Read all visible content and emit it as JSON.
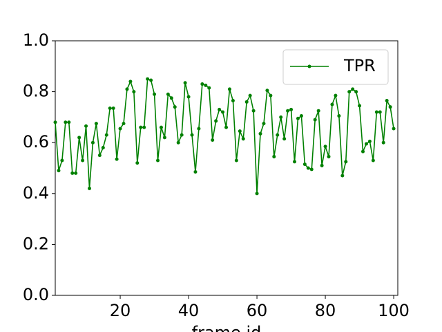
{
  "chart_data": {
    "type": "line",
    "xlabel": "frame id",
    "x": [
      1,
      2,
      3,
      4,
      5,
      6,
      7,
      8,
      9,
      10,
      11,
      12,
      13,
      14,
      15,
      16,
      17,
      18,
      19,
      20,
      21,
      22,
      23,
      24,
      25,
      26,
      27,
      28,
      29,
      30,
      31,
      32,
      33,
      34,
      35,
      36,
      37,
      38,
      39,
      40,
      41,
      42,
      43,
      44,
      45,
      46,
      47,
      48,
      49,
      50,
      51,
      52,
      53,
      54,
      55,
      56,
      57,
      58,
      59,
      60,
      61,
      62,
      63,
      64,
      65,
      66,
      67,
      68,
      69,
      70,
      71,
      72,
      73,
      74,
      75,
      76,
      77,
      78,
      79,
      80,
      81,
      82,
      83,
      84,
      85,
      86,
      87,
      88,
      89,
      90,
      91,
      92,
      93,
      94,
      95,
      96,
      97,
      98,
      99,
      100
    ],
    "series": [
      {
        "name": "TPR",
        "color": "#008000",
        "values": [
          0.68,
          0.49,
          0.53,
          0.68,
          0.68,
          0.48,
          0.48,
          0.62,
          0.53,
          0.665,
          0.42,
          0.6,
          0.675,
          0.55,
          0.58,
          0.63,
          0.735,
          0.735,
          0.535,
          0.655,
          0.675,
          0.81,
          0.84,
          0.8,
          0.52,
          0.66,
          0.66,
          0.85,
          0.845,
          0.79,
          0.53,
          0.66,
          0.62,
          0.79,
          0.775,
          0.74,
          0.6,
          0.63,
          0.835,
          0.78,
          0.63,
          0.485,
          0.655,
          0.83,
          0.825,
          0.815,
          0.61,
          0.685,
          0.73,
          0.72,
          0.66,
          0.81,
          0.765,
          0.53,
          0.645,
          0.615,
          0.76,
          0.785,
          0.725,
          0.4,
          0.635,
          0.675,
          0.805,
          0.785,
          0.545,
          0.63,
          0.7,
          0.615,
          0.725,
          0.73,
          0.525,
          0.695,
          0.705,
          0.515,
          0.5,
          0.495,
          0.69,
          0.725,
          0.51,
          0.585,
          0.545,
          0.75,
          0.785,
          0.705,
          0.47,
          0.525,
          0.8,
          0.81,
          0.8,
          0.745,
          0.565,
          0.595,
          0.605,
          0.53,
          0.72,
          0.72,
          0.6,
          0.765,
          0.74,
          0.655
        ]
      }
    ],
    "xlim": [
      1,
      101.2
    ],
    "xticks": [
      20,
      40,
      60,
      80,
      100
    ],
    "ylim": [
      0,
      1
    ],
    "yticks": [
      {
        "value": 0,
        "label": "0.0"
      },
      {
        "value": 0.2,
        "label": "0.2"
      },
      {
        "value": 0.4,
        "label": "0.4"
      },
      {
        "value": 0.6,
        "label": "0.6"
      },
      {
        "value": 0.8,
        "label": "0.8"
      },
      {
        "value": 1,
        "label": "1.0"
      }
    ],
    "legend": "upper right"
  }
}
